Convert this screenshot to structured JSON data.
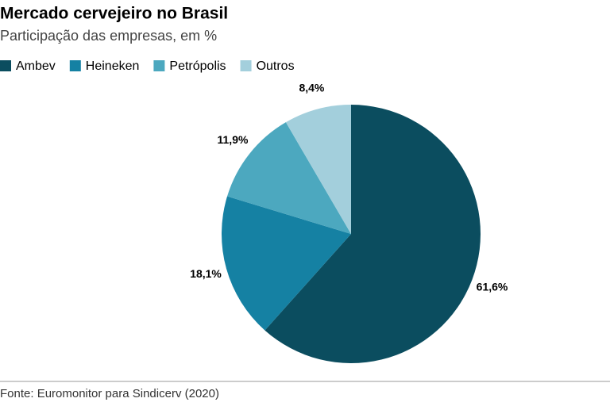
{
  "chart_data": {
    "type": "pie",
    "title": "Mercado cervejeiro no Brasil",
    "subtitle": "Participação das empresas, em %",
    "categories": [
      "Ambev",
      "Heineken",
      "Petrópolis",
      "Outros"
    ],
    "values": [
      61.6,
      18.1,
      11.9,
      8.4
    ],
    "value_labels": [
      "61,6%",
      "18,1%",
      "11,9%",
      "8,4%"
    ],
    "colors": [
      "#0b4d5f",
      "#1581a3",
      "#4ca8bf",
      "#a3cfdc"
    ],
    "legend": "top-left",
    "source": "Fonte: Euromonitor para Sindicerv (2020)"
  }
}
